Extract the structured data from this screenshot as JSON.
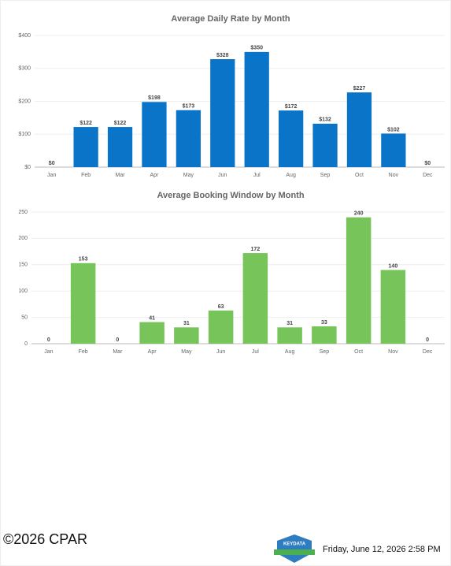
{
  "chart_data": [
    {
      "type": "bar",
      "title": "Average Daily Rate by Month",
      "categories": [
        "Jan",
        "Feb",
        "Mar",
        "Apr",
        "May",
        "Jun",
        "Jul",
        "Aug",
        "Sep",
        "Oct",
        "Nov",
        "Dec"
      ],
      "values": [
        0,
        122,
        122,
        198,
        173,
        328,
        350,
        172,
        132,
        227,
        102,
        0
      ],
      "value_labels": [
        "$0",
        "$122",
        "$122",
        "$198",
        "$173",
        "$328",
        "$350",
        "$172",
        "$132",
        "$227",
        "$102",
        "$0"
      ],
      "color": "#0a74c9",
      "ylim": [
        0,
        400
      ],
      "yticks": [
        {
          "value": 0,
          "label": "$0"
        },
        {
          "value": 100,
          "label": "$100"
        },
        {
          "value": 200,
          "label": "$200"
        },
        {
          "value": 300,
          "label": "$300"
        },
        {
          "value": 400,
          "label": "$400"
        }
      ],
      "grid": true
    },
    {
      "type": "bar",
      "title": "Average Booking Window by Month",
      "categories": [
        "Jan",
        "Feb",
        "Mar",
        "Apr",
        "May",
        "Jun",
        "Jul",
        "Aug",
        "Sep",
        "Oct",
        "Nov",
        "Dec"
      ],
      "values": [
        0,
        153,
        0,
        41,
        31,
        63,
        172,
        31,
        33,
        240,
        140,
        0
      ],
      "color": "#77c55a",
      "ylim": [
        0,
        250
      ],
      "yticks": [
        0,
        50,
        100,
        150,
        200,
        250
      ],
      "grid": true
    }
  ],
  "footer": {
    "copyright": "©2026 CPAR",
    "logo": "KEYDATA",
    "timestamp": "Friday, June 12, 2026 2:58 PM"
  }
}
